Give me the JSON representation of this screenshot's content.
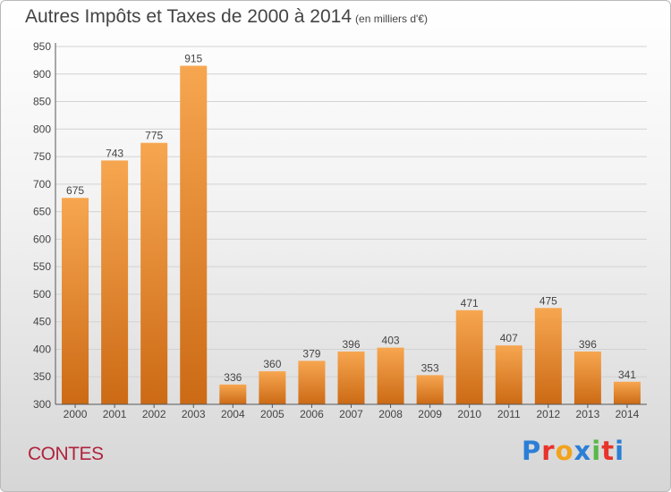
{
  "title": "Autres Impôts et Taxes de 2000 à 2014",
  "unit": "(en milliers d'€)",
  "city": "CONTES",
  "brand": {
    "letters": [
      "P",
      "r",
      "o",
      "x",
      "i",
      "t",
      "i"
    ],
    "colors": [
      "#2b7fd6",
      "#e8332b",
      "#f2a31b",
      "#2b7fd6",
      "#57b947",
      "#e8332b",
      "#2b7fd6"
    ]
  },
  "colors": {
    "bar_top": "#f7a650",
    "bar_bottom": "#cc6a15",
    "grid": "#d2d2d2",
    "axis": "#555555"
  },
  "chart_data": {
    "type": "bar",
    "title": "Autres Impôts et Taxes de 2000 à 2014",
    "subtitle": "(en milliers d'€)",
    "categories": [
      "2000",
      "2001",
      "2002",
      "2003",
      "2004",
      "2005",
      "2006",
      "2007",
      "2008",
      "2009",
      "2010",
      "2011",
      "2012",
      "2013",
      "2014"
    ],
    "values": [
      675,
      743,
      775,
      915,
      336,
      360,
      379,
      396,
      403,
      353,
      471,
      407,
      475,
      396,
      341
    ],
    "ylim": [
      300,
      950
    ],
    "yticks": [
      300,
      350,
      400,
      450,
      500,
      550,
      600,
      650,
      700,
      750,
      800,
      850,
      900,
      950
    ],
    "grid": true,
    "legend": "none"
  }
}
